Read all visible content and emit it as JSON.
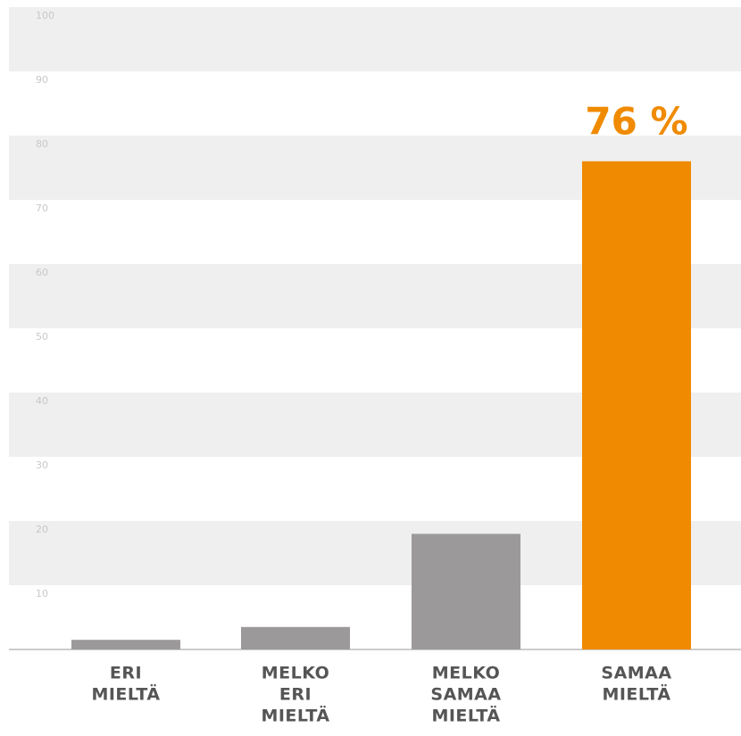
{
  "chart_data": {
    "type": "bar",
    "categories": [
      [
        "ERI",
        "MIELTÄ"
      ],
      [
        "MELKO",
        "ERI",
        "MIELTÄ"
      ],
      [
        "MELKO",
        "SAMAA",
        "MIELTÄ"
      ],
      [
        "SAMAA",
        "MIELTÄ"
      ]
    ],
    "values": [
      1.5,
      3.5,
      18,
      76
    ],
    "value_labels": [
      null,
      null,
      null,
      "76 %"
    ],
    "colors": [
      "#9c999b",
      "#9c999b",
      "#9c999b",
      "#f08a00"
    ],
    "ylim": [
      0,
      100
    ],
    "yticks": [
      10,
      20,
      30,
      40,
      50,
      60,
      70,
      80,
      90,
      100
    ],
    "grid": "bands"
  }
}
